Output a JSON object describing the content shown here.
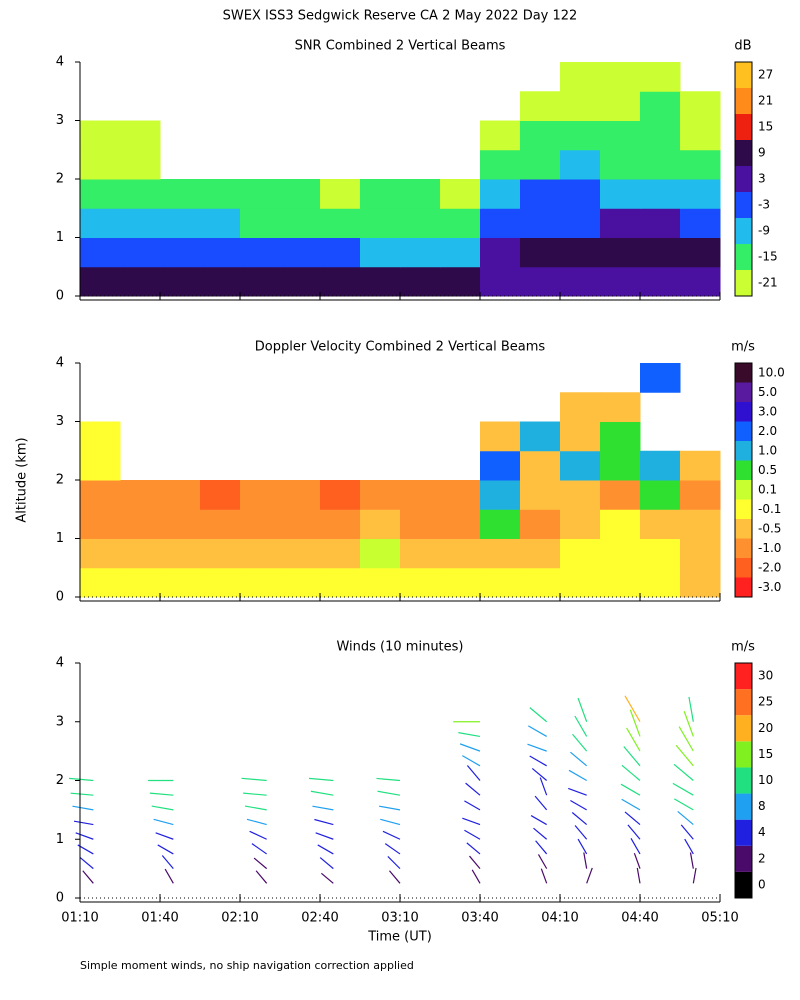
{
  "title": "SWEX ISS3 Sedgwick Reserve CA   2 May 2022 Day 122",
  "y_label": "Altitude (km)",
  "x_label": "Time (UT)",
  "footnote": "Simple moment winds, no ship navigation correction applied",
  "chart_data": [
    {
      "type": "heatmap",
      "title": "SNR Combined 2 Vertical Beams",
      "unit": "dB",
      "xlim": [
        "01:10",
        "05:10"
      ],
      "ylim": [
        0,
        4
      ],
      "yticks": [
        0,
        1,
        2,
        3,
        4
      ],
      "x": [
        "01:10",
        "01:25",
        "01:40",
        "01:55",
        "02:10",
        "02:25",
        "02:40",
        "02:55",
        "03:10",
        "03:25",
        "03:40",
        "03:55",
        "04:10",
        "04:25",
        "04:40",
        "04:55"
      ],
      "y": [
        0,
        0.5,
        1,
        1.5,
        2,
        2.5,
        3,
        3.5
      ],
      "values": [
        [
          12,
          12,
          12,
          12,
          10,
          10,
          10,
          10,
          9,
          8,
          6,
          6,
          6,
          6,
          6,
          6
        ],
        [
          -3,
          -3,
          -3,
          -4,
          -4,
          -3,
          -5,
          -6,
          -6,
          -6,
          3,
          10,
          10,
          10,
          9,
          9
        ],
        [
          -10,
          -10,
          -11,
          -11,
          -12,
          -12,
          -13,
          -14,
          -14,
          -14,
          -3,
          -1,
          0,
          3,
          2,
          0
        ],
        [
          -14,
          -15,
          -15,
          -16,
          -17,
          -17,
          -18,
          -16,
          -17,
          -18,
          -8,
          -5,
          -4,
          -6,
          -6,
          -8
        ],
        [
          -20,
          -20,
          null,
          null,
          null,
          null,
          null,
          null,
          null,
          null,
          -15,
          -12,
          -10,
          -12,
          -12,
          -14
        ],
        [
          -21,
          -21,
          null,
          null,
          null,
          null,
          null,
          null,
          null,
          null,
          -18,
          -15,
          -14,
          -15,
          -15,
          -18
        ],
        [
          null,
          null,
          null,
          null,
          null,
          null,
          null,
          null,
          null,
          null,
          null,
          -20,
          -18,
          -18,
          -17,
          -20
        ],
        [
          null,
          null,
          null,
          null,
          null,
          null,
          null,
          null,
          null,
          null,
          null,
          null,
          -20,
          -20,
          -18,
          null
        ]
      ],
      "colorbar": {
        "ticks": [
          -21,
          -15,
          -9,
          -3,
          3,
          9,
          15,
          21,
          27
        ],
        "colors": [
          "#ccff33",
          "#33ee66",
          "#22bbee",
          "#1a4cff",
          "#4a10a0",
          "#2e0a4a",
          "#ee2010",
          "#ff8c1a",
          "#ffc020"
        ]
      }
    },
    {
      "type": "heatmap",
      "title": "Doppler Velocity Combined 2 Vertical Beams",
      "unit": "m/s",
      "xlim": [
        "01:10",
        "05:10"
      ],
      "ylim": [
        0,
        4
      ],
      "yticks": [
        0,
        1,
        2,
        3,
        4
      ],
      "x": [
        "01:10",
        "01:25",
        "01:40",
        "01:55",
        "02:10",
        "02:25",
        "02:40",
        "02:55",
        "03:10",
        "03:25",
        "03:40",
        "03:55",
        "04:10",
        "04:25",
        "04:40",
        "04:55"
      ],
      "y": [
        0,
        0.5,
        1,
        1.5,
        2,
        2.5,
        3,
        3.5
      ],
      "values": [
        [
          -0.1,
          -0.1,
          -0.1,
          -0.1,
          -0.1,
          -0.1,
          -0.1,
          -0.1,
          -0.1,
          -0.1,
          -0.1,
          -0.1,
          -0.1,
          -0.1,
          -0.1,
          -0.5
        ],
        [
          -0.5,
          -0.5,
          -0.5,
          -0.5,
          -0.5,
          -0.5,
          -0.5,
          0.1,
          -0.5,
          -0.5,
          -0.5,
          -0.5,
          -0.1,
          -0.1,
          -0.1,
          -0.5
        ],
        [
          -1,
          -1,
          -1,
          -1,
          -1,
          -1,
          -1,
          -0.5,
          -1,
          -1,
          0.5,
          -1,
          -0.5,
          -0.1,
          -0.5,
          -0.5
        ],
        [
          -1,
          -1,
          -1,
          -2,
          -1,
          -1,
          -2,
          -1,
          -1,
          -1,
          1,
          -0.5,
          -0.5,
          -1,
          0.5,
          -1
        ],
        [
          -0.1,
          null,
          null,
          null,
          null,
          null,
          null,
          null,
          null,
          null,
          2,
          -0.5,
          1,
          0.5,
          1,
          -0.5
        ],
        [
          -0.1,
          null,
          null,
          null,
          null,
          null,
          null,
          null,
          null,
          null,
          -0.5,
          1,
          -0.5,
          0.5,
          null,
          null
        ],
        [
          null,
          null,
          null,
          null,
          null,
          null,
          null,
          null,
          null,
          null,
          null,
          null,
          -0.5,
          -0.5,
          null,
          null
        ],
        [
          null,
          null,
          null,
          null,
          null,
          null,
          null,
          null,
          null,
          null,
          null,
          null,
          null,
          null,
          2,
          null
        ]
      ],
      "colorbar": {
        "ticks": [
          {
            "value": -3,
            "label": "-3.0"
          },
          {
            "value": -2,
            "label": "-2.0"
          },
          {
            "value": -1,
            "label": "-1.0"
          },
          -0.5,
          -0.1,
          0.1,
          0.5,
          {
            "value": 1,
            "label": "1.0"
          },
          {
            "value": 2,
            "label": "2.0"
          },
          {
            "value": 3,
            "label": "3.0"
          },
          {
            "value": 5,
            "label": "5.0"
          },
          {
            "value": 10,
            "label": "10.0"
          }
        ],
        "colors": [
          "#ff2020",
          "#ff6020",
          "#ff9030",
          "#ffc040",
          "#ffff30",
          "#c8ff30",
          "#30e030",
          "#20b0e0",
          "#1060ff",
          "#3010d0",
          "#5a1aa0",
          "#3a0a2a"
        ]
      }
    },
    {
      "type": "barbs",
      "title": "Winds (10 minutes)",
      "unit": "m/s",
      "xlim": [
        "01:10",
        "05:10"
      ],
      "xticks": [
        "01:10",
        "01:40",
        "02:10",
        "02:40",
        "03:10",
        "03:40",
        "04:10",
        "04:40",
        "05:10"
      ],
      "ylim": [
        0,
        4
      ],
      "yticks": [
        0,
        1,
        2,
        3,
        4
      ],
      "profiles": [
        {
          "time": "01:15",
          "heights": [
            0.25,
            0.5,
            0.75,
            1,
            1.25,
            1.5,
            1.75,
            2
          ],
          "speeds": [
            3,
            4,
            5,
            6,
            7,
            9,
            11,
            13
          ],
          "directions": [
            320,
            310,
            300,
            290,
            280,
            280,
            275,
            275
          ]
        },
        {
          "time": "01:45",
          "heights": [
            0.25,
            0.5,
            0.75,
            1,
            1.25,
            1.5,
            1.75,
            2
          ],
          "speeds": [
            3,
            4,
            5,
            6,
            8,
            10,
            12,
            14
          ],
          "directions": [
            330,
            320,
            300,
            290,
            285,
            280,
            275,
            270
          ]
        },
        {
          "time": "02:20",
          "heights": [
            0.25,
            0.5,
            0.75,
            1,
            1.25,
            1.5,
            1.75,
            2
          ],
          "speeds": [
            3,
            3,
            5,
            6,
            8,
            10,
            12,
            14
          ],
          "directions": [
            320,
            310,
            305,
            295,
            285,
            280,
            275,
            275
          ]
        },
        {
          "time": "02:45",
          "heights": [
            0.25,
            0.5,
            0.75,
            1,
            1.25,
            1.5,
            1.75,
            2
          ],
          "speeds": [
            2,
            4,
            5,
            6,
            7,
            9,
            11,
            13
          ],
          "directions": [
            310,
            310,
            300,
            290,
            285,
            280,
            280,
            275
          ]
        },
        {
          "time": "03:10",
          "heights": [
            0.25,
            0.5,
            0.75,
            1,
            1.25,
            1.5,
            1.75,
            2
          ],
          "speeds": [
            3,
            4,
            5,
            6,
            8,
            9,
            11,
            12
          ],
          "directions": [
            320,
            315,
            305,
            295,
            285,
            280,
            280,
            275
          ]
        },
        {
          "time": "03:40",
          "heights": [
            0.25,
            0.5,
            0.75,
            1,
            1.25,
            1.5,
            1.75,
            2,
            2.25,
            2.5,
            2.75,
            3
          ],
          "speeds": [
            2,
            3,
            4,
            5,
            6,
            5,
            6,
            7,
            8,
            9,
            10,
            16
          ],
          "directions": [
            330,
            320,
            310,
            300,
            290,
            300,
            310,
            320,
            300,
            290,
            280,
            270
          ]
        },
        {
          "time": "04:05",
          "heights": [
            0.25,
            0.5,
            0.75,
            1,
            1.25,
            1.5,
            1.75,
            2,
            2.25,
            2.5,
            2.75,
            3
          ],
          "speeds": [
            2,
            3,
            4,
            4,
            5,
            5,
            6,
            6,
            7,
            8,
            9,
            10
          ],
          "directions": [
            340,
            330,
            320,
            310,
            300,
            320,
            340,
            310,
            300,
            290,
            300,
            310
          ]
        },
        {
          "time": "04:20",
          "heights": [
            0.25,
            0.5,
            0.75,
            1,
            1.25,
            1.5,
            1.75,
            2,
            2.25,
            2.5,
            2.75,
            3
          ],
          "speeds": [
            3,
            3,
            4,
            5,
            6,
            6,
            7,
            8,
            9,
            10,
            12,
            14
          ],
          "directions": [
            20,
            350,
            330,
            320,
            310,
            300,
            290,
            300,
            310,
            320,
            330,
            340
          ]
        },
        {
          "time": "04:40",
          "heights": [
            0.25,
            0.5,
            0.75,
            1,
            1.25,
            1.5,
            1.75,
            2,
            2.25,
            2.5,
            2.75,
            3
          ],
          "speeds": [
            2,
            3,
            5,
            6,
            7,
            9,
            10,
            12,
            14,
            16,
            18,
            20
          ],
          "directions": [
            350,
            340,
            330,
            320,
            310,
            300,
            300,
            310,
            320,
            330,
            340,
            330
          ]
        },
        {
          "time": "05:00",
          "heights": [
            0.25,
            0.5,
            0.75,
            1,
            1.25,
            1.5,
            1.75,
            2,
            2.25,
            2.5,
            2.75,
            3
          ],
          "speeds": [
            2,
            3,
            4,
            6,
            8,
            10,
            12,
            14,
            16,
            18,
            16,
            14
          ],
          "directions": [
            10,
            350,
            330,
            320,
            310,
            300,
            300,
            310,
            320,
            330,
            340,
            350
          ]
        }
      ],
      "colorbar": {
        "ticks": [
          0,
          2,
          4,
          8,
          10,
          15,
          20,
          25,
          30
        ],
        "colors": [
          "#000000",
          "#4a0a6a",
          "#2020e0",
          "#20a0f0",
          "#20e080",
          "#80f020",
          "#ffb020",
          "#ff7020",
          "#ff2020"
        ]
      }
    }
  ]
}
